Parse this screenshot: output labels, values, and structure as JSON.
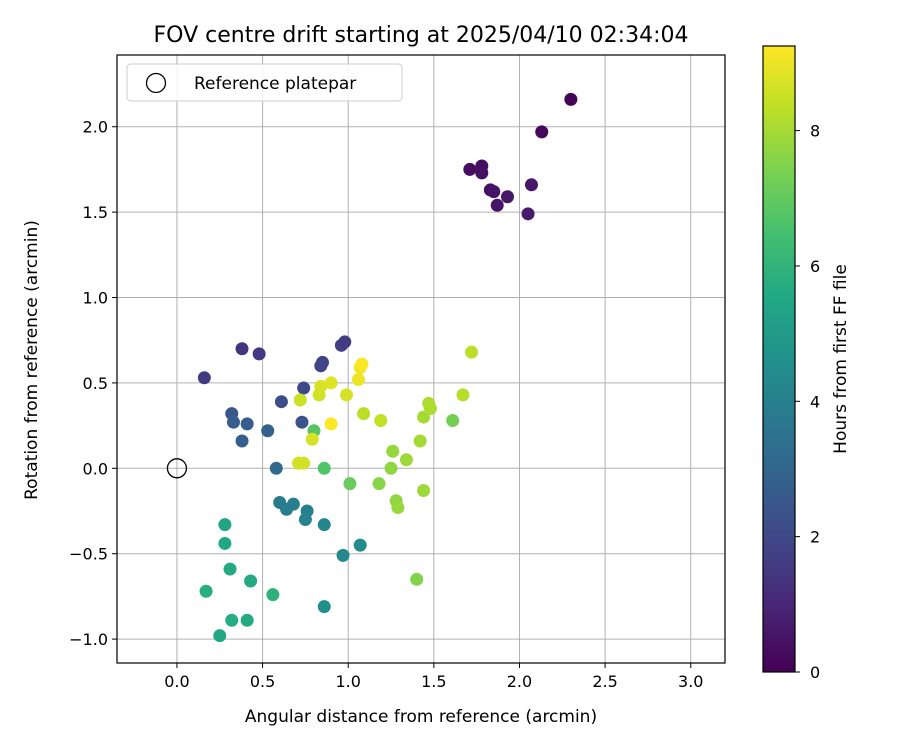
{
  "chart_data": {
    "type": "scatter",
    "title": "FOV centre drift starting at 2025/04/10 02:34:04",
    "xlabel": "Angular distance from reference (arcmin)",
    "ylabel": "Rotation from reference (arcmin)",
    "xlim": [
      -0.35,
      3.2
    ],
    "ylim": [
      -1.14,
      2.42
    ],
    "xticks": [
      0.0,
      0.5,
      1.0,
      1.5,
      2.0,
      2.5,
      3.0
    ],
    "xtick_labels": [
      "0.0",
      "0.5",
      "1.0",
      "1.5",
      "2.0",
      "2.5",
      "3.0"
    ],
    "yticks": [
      -1.0,
      -0.5,
      0.0,
      0.5,
      1.0,
      1.5,
      2.0
    ],
    "ytick_labels": [
      "−1.0",
      "−0.5",
      "0.0",
      "0.5",
      "1.0",
      "1.5",
      "2.0"
    ],
    "grid": true,
    "legend": {
      "placement": "top-left",
      "entries": [
        "Reference platepar"
      ]
    },
    "reference_point": {
      "x": 0.0,
      "y": 0.0
    },
    "colorbar": {
      "label": "Hours from first FF file",
      "colormap": "viridis",
      "range": [
        0,
        9.25
      ],
      "ticks": [
        0,
        2,
        4,
        6,
        8
      ],
      "tick_labels": [
        "0",
        "2",
        "4",
        "6",
        "8"
      ]
    },
    "points": [
      {
        "x": 2.3,
        "y": 2.16,
        "c": 0.1
      },
      {
        "x": 2.13,
        "y": 1.97,
        "c": 0.2
      },
      {
        "x": 1.71,
        "y": 1.75,
        "c": 0.3
      },
      {
        "x": 1.78,
        "y": 1.77,
        "c": 0.3
      },
      {
        "x": 1.78,
        "y": 1.73,
        "c": 0.4
      },
      {
        "x": 1.83,
        "y": 1.63,
        "c": 0.4
      },
      {
        "x": 1.85,
        "y": 1.62,
        "c": 0.5
      },
      {
        "x": 1.87,
        "y": 1.54,
        "c": 0.5
      },
      {
        "x": 1.93,
        "y": 1.59,
        "c": 0.6
      },
      {
        "x": 2.07,
        "y": 1.66,
        "c": 0.6
      },
      {
        "x": 2.05,
        "y": 1.49,
        "c": 0.7
      },
      {
        "x": 0.16,
        "y": 0.53,
        "c": 1.6
      },
      {
        "x": 0.38,
        "y": 0.7,
        "c": 1.4
      },
      {
        "x": 0.48,
        "y": 0.67,
        "c": 1.5
      },
      {
        "x": 0.85,
        "y": 0.62,
        "c": 1.8
      },
      {
        "x": 0.84,
        "y": 0.6,
        "c": 1.9
      },
      {
        "x": 0.96,
        "y": 0.72,
        "c": 1.7
      },
      {
        "x": 0.98,
        "y": 0.74,
        "c": 1.6
      },
      {
        "x": 0.74,
        "y": 0.47,
        "c": 2.0
      },
      {
        "x": 0.61,
        "y": 0.39,
        "c": 2.2
      },
      {
        "x": 0.32,
        "y": 0.32,
        "c": 2.5
      },
      {
        "x": 0.33,
        "y": 0.27,
        "c": 2.7
      },
      {
        "x": 0.41,
        "y": 0.26,
        "c": 2.7
      },
      {
        "x": 0.38,
        "y": 0.16,
        "c": 2.8
      },
      {
        "x": 0.53,
        "y": 0.22,
        "c": 2.9
      },
      {
        "x": 0.73,
        "y": 0.27,
        "c": 2.4
      },
      {
        "x": 0.58,
        "y": 0.0,
        "c": 3.2
      },
      {
        "x": 0.6,
        "y": -0.2,
        "c": 3.8
      },
      {
        "x": 0.64,
        "y": -0.24,
        "c": 3.9
      },
      {
        "x": 0.68,
        "y": -0.21,
        "c": 3.9
      },
      {
        "x": 0.76,
        "y": -0.25,
        "c": 4.0
      },
      {
        "x": 0.75,
        "y": -0.3,
        "c": 4.1
      },
      {
        "x": 0.86,
        "y": -0.33,
        "c": 4.2
      },
      {
        "x": 0.97,
        "y": -0.51,
        "c": 4.3
      },
      {
        "x": 1.07,
        "y": -0.45,
        "c": 4.4
      },
      {
        "x": 0.86,
        "y": -0.81,
        "c": 4.6
      },
      {
        "x": 0.28,
        "y": -0.33,
        "c": 5.4
      },
      {
        "x": 0.28,
        "y": -0.44,
        "c": 5.5
      },
      {
        "x": 0.31,
        "y": -0.59,
        "c": 5.6
      },
      {
        "x": 0.43,
        "y": -0.66,
        "c": 5.6
      },
      {
        "x": 0.17,
        "y": -0.72,
        "c": 5.8
      },
      {
        "x": 0.56,
        "y": -0.74,
        "c": 5.9
      },
      {
        "x": 0.32,
        "y": -0.89,
        "c": 5.7
      },
      {
        "x": 0.41,
        "y": -0.89,
        "c": 5.6
      },
      {
        "x": 0.25,
        "y": -0.98,
        "c": 5.5
      },
      {
        "x": 0.8,
        "y": 0.22,
        "c": 6.8
      },
      {
        "x": 0.86,
        "y": 0.0,
        "c": 6.7
      },
      {
        "x": 1.01,
        "y": -0.09,
        "c": 7.1
      },
      {
        "x": 1.61,
        "y": 0.28,
        "c": 7.3
      },
      {
        "x": 1.4,
        "y": -0.65,
        "c": 7.5
      },
      {
        "x": 1.18,
        "y": -0.09,
        "c": 7.6
      },
      {
        "x": 1.25,
        "y": 0.0,
        "c": 7.7
      },
      {
        "x": 1.26,
        "y": 0.1,
        "c": 7.8
      },
      {
        "x": 1.28,
        "y": -0.19,
        "c": 7.7
      },
      {
        "x": 1.29,
        "y": -0.23,
        "c": 7.8
      },
      {
        "x": 1.34,
        "y": 0.05,
        "c": 7.9
      },
      {
        "x": 1.42,
        "y": 0.16,
        "c": 8.0
      },
      {
        "x": 1.44,
        "y": -0.13,
        "c": 7.9
      },
      {
        "x": 1.44,
        "y": 0.3,
        "c": 8.0
      },
      {
        "x": 1.47,
        "y": 0.38,
        "c": 8.1
      },
      {
        "x": 1.48,
        "y": 0.35,
        "c": 8.1
      },
      {
        "x": 1.67,
        "y": 0.43,
        "c": 8.2
      },
      {
        "x": 1.72,
        "y": 0.68,
        "c": 8.3
      },
      {
        "x": 1.09,
        "y": 0.32,
        "c": 8.3
      },
      {
        "x": 1.19,
        "y": 0.28,
        "c": 8.4
      },
      {
        "x": 0.72,
        "y": 0.4,
        "c": 8.5
      },
      {
        "x": 0.74,
        "y": 0.03,
        "c": 8.6
      },
      {
        "x": 0.71,
        "y": 0.03,
        "c": 8.6
      },
      {
        "x": 0.79,
        "y": 0.17,
        "c": 8.7
      },
      {
        "x": 0.83,
        "y": 0.43,
        "c": 8.6
      },
      {
        "x": 0.84,
        "y": 0.48,
        "c": 8.7
      },
      {
        "x": 0.9,
        "y": 0.5,
        "c": 8.8
      },
      {
        "x": 0.99,
        "y": 0.43,
        "c": 8.7
      },
      {
        "x": 1.06,
        "y": 0.52,
        "c": 9.0
      },
      {
        "x": 1.07,
        "y": 0.59,
        "c": 9.1
      },
      {
        "x": 1.08,
        "y": 0.61,
        "c": 9.2
      },
      {
        "x": 0.9,
        "y": 0.26,
        "c": 9.2
      }
    ]
  }
}
